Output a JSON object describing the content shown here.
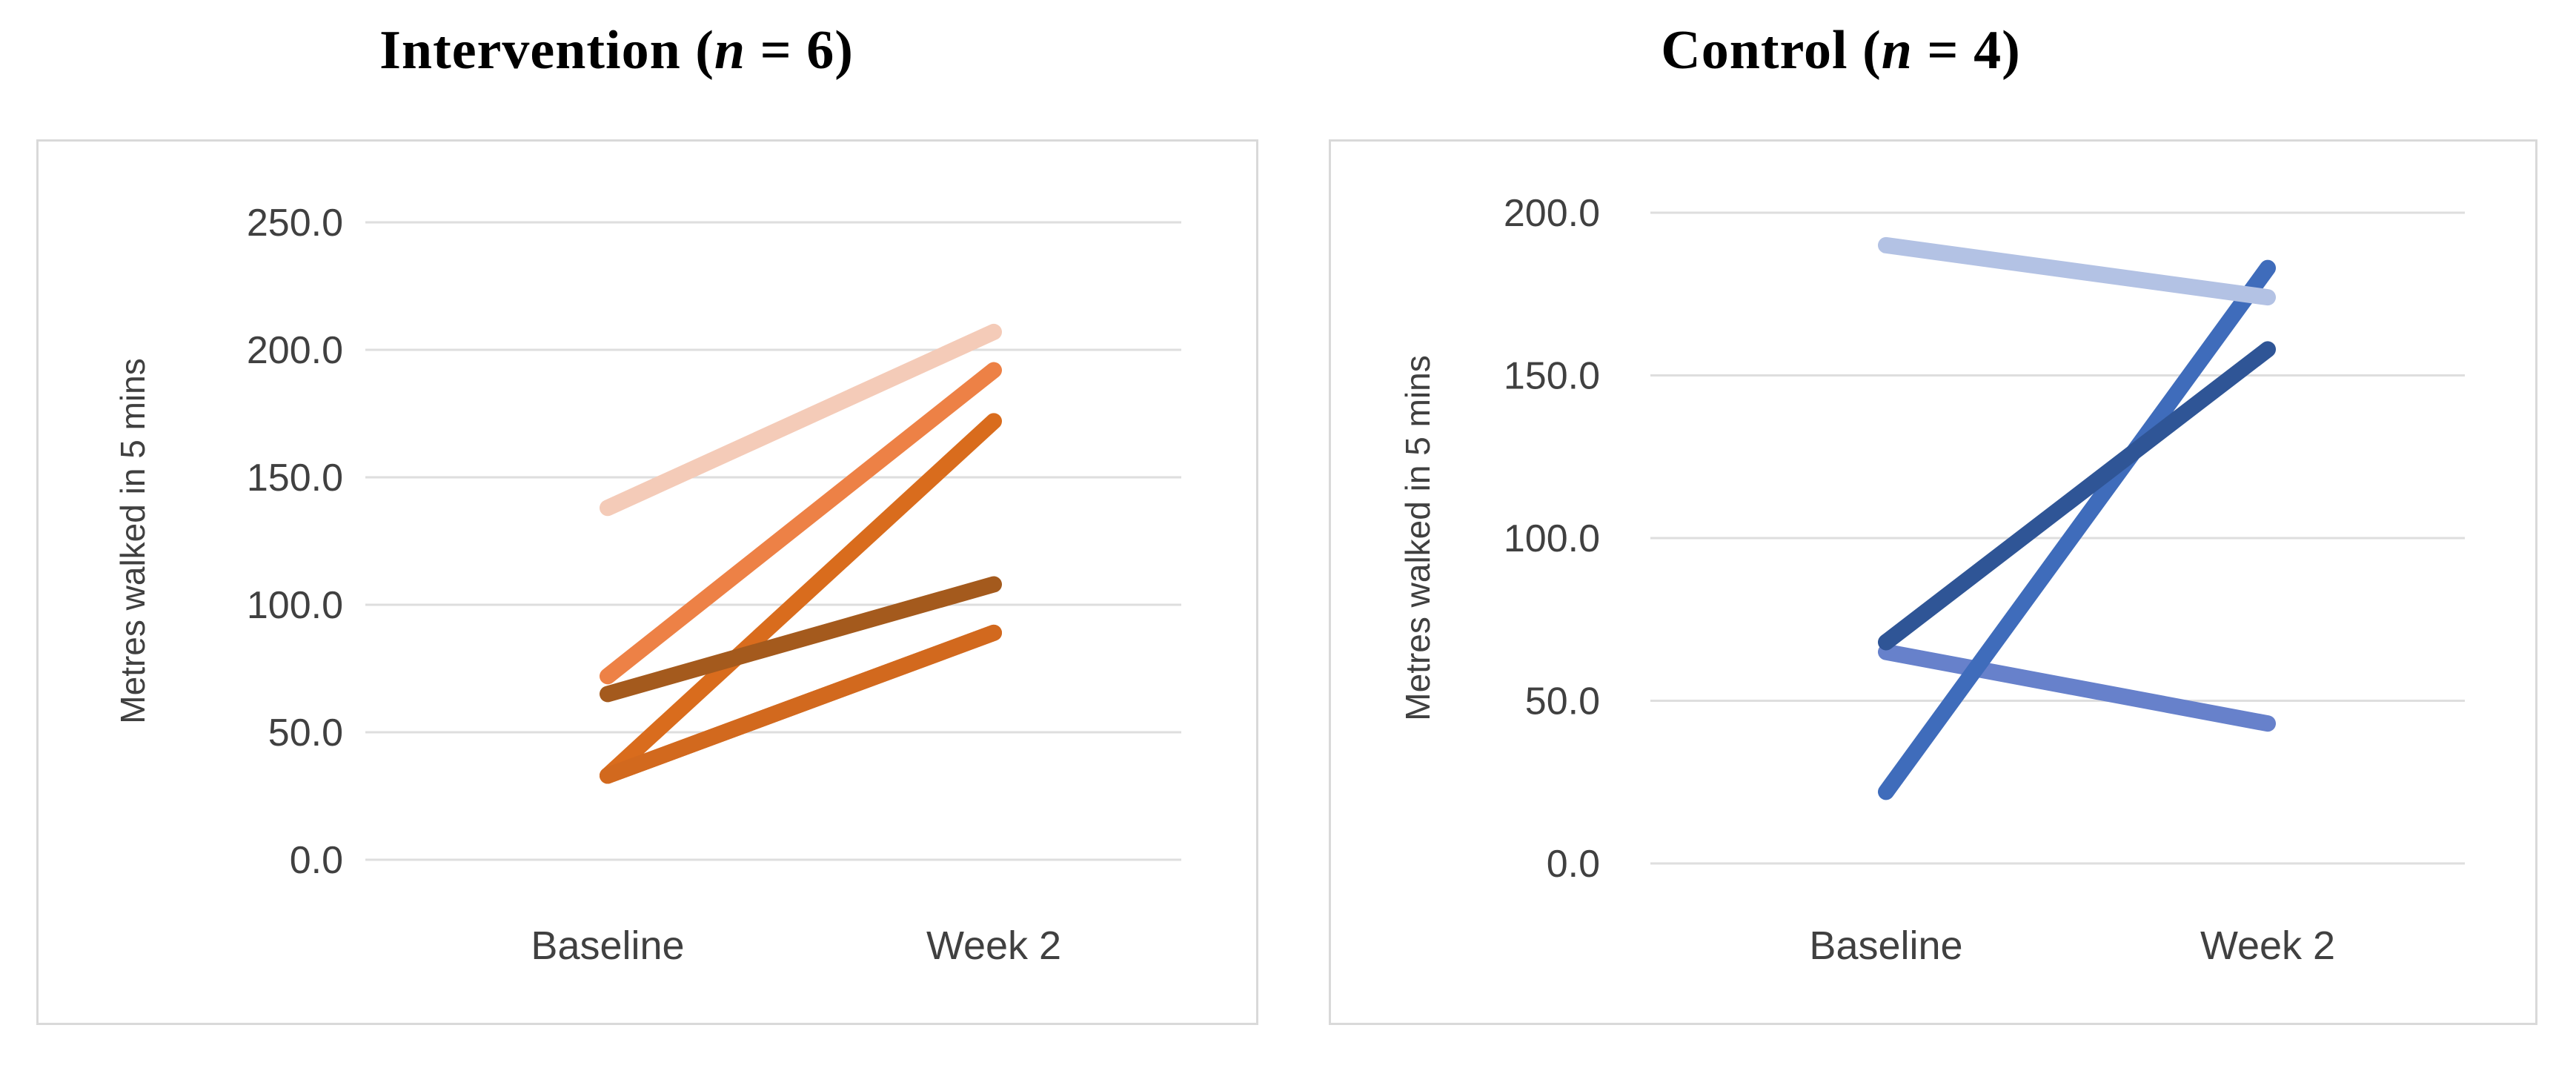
{
  "figure": {
    "background": "#FFFFFF",
    "note": "Two side-by-side paired line panels showing individual trajectories from Baseline to Week 2; in the Intervention panel only five of the six lines are visually distinct (two overlap)."
  },
  "colors": {
    "chart_border": "#D9D9D9",
    "gridline": "#DEDEDE",
    "axis_text": "#404040",
    "title_text": "#000000"
  },
  "chart_data": [
    {
      "type": "line",
      "panel": "left",
      "title": "Intervention (n = 6)",
      "title_parts": {
        "prefix": "Intervention (",
        "italic_n": "n",
        "suffix": " = 6)"
      },
      "ylabel": "Metres walked in 5 mins",
      "xlabel": "",
      "categories": [
        "Baseline",
        "Week 2"
      ],
      "ylim": [
        0,
        250
      ],
      "ytick_step": 50,
      "ytick_labels": [
        "250.0",
        "200.0",
        "150.0",
        "100.0",
        "50.0",
        "0.0"
      ],
      "grid": true,
      "legend": "none",
      "line_width": 22,
      "series": [
        {
          "name": "line-1",
          "color": "#D96C1D",
          "values": [
            33,
            172
          ]
        },
        {
          "name": "line-2",
          "color": "#D2691E",
          "values": [
            33,
            89
          ]
        },
        {
          "name": "line-3",
          "color": "#ED8146",
          "values": [
            72,
            192
          ]
        },
        {
          "name": "line-4",
          "color": "#F4CBB8",
          "values": [
            138,
            207
          ]
        },
        {
          "name": "line-5",
          "color": "#A45A1D",
          "values": [
            65,
            108
          ]
        },
        {
          "name": "line-6",
          "color": "#D2691E",
          "values": [
            33,
            89
          ],
          "note": "overlaps line-2; six participants, five visually distinct lines"
        }
      ]
    },
    {
      "type": "line",
      "panel": "right",
      "title": "Control (n = 4)",
      "title_parts": {
        "prefix": "Control (",
        "italic_n": "n",
        "suffix": " = 4)"
      },
      "ylabel": "Metres walked in 5 mins",
      "xlabel": "",
      "categories": [
        "Baseline",
        "Week 2"
      ],
      "ylim": [
        0,
        200
      ],
      "ytick_step": 50,
      "ytick_labels": [
        "200.0",
        "150.0",
        "100.0",
        "50.0",
        "0.0"
      ],
      "grid": true,
      "legend": "none",
      "line_width": 22,
      "series": [
        {
          "name": "line-1",
          "color": "#6781CB",
          "values": [
            65,
            43
          ]
        },
        {
          "name": "line-2",
          "color": "#3F6CBB",
          "values": [
            22,
            183
          ]
        },
        {
          "name": "line-3",
          "color": "#2F5596",
          "values": [
            68,
            158
          ]
        },
        {
          "name": "line-4",
          "color": "#B3C2E4",
          "values": [
            190,
            174
          ]
        }
      ]
    }
  ]
}
